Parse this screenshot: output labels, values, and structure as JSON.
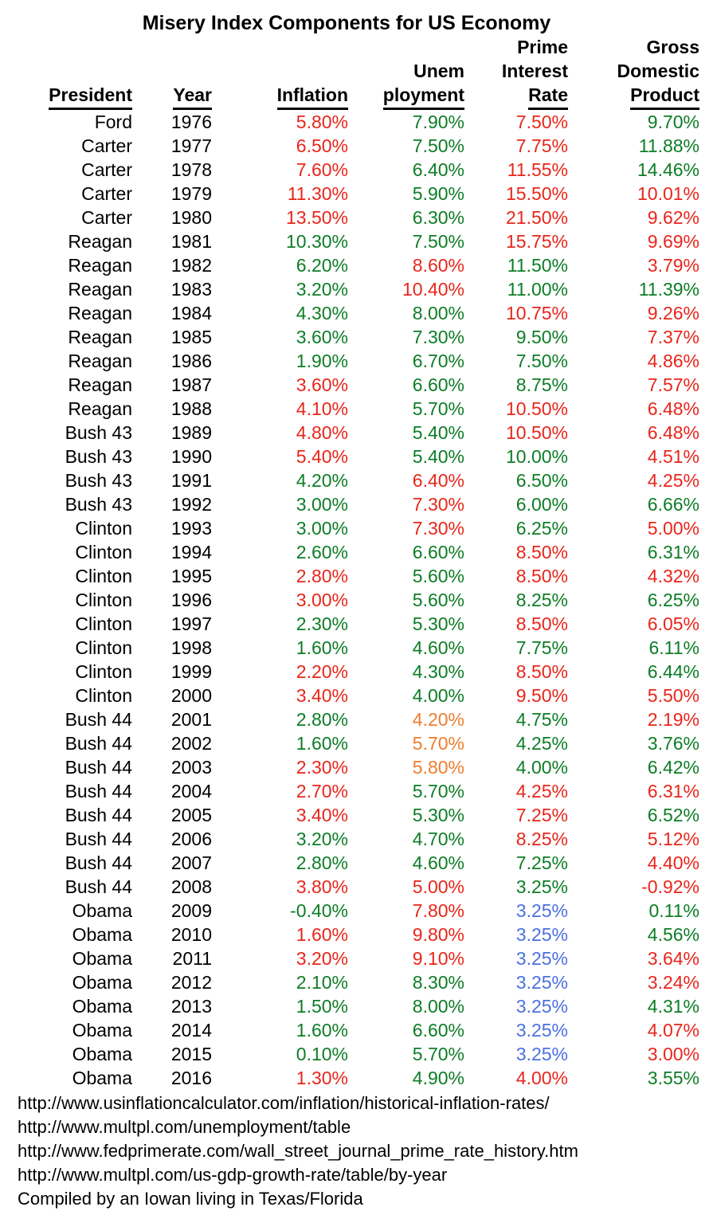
{
  "title": "Misery Index Components for US Economy",
  "colors": {
    "red": "#e8261b",
    "green": "#0d7d26",
    "orange": "#ee7d2e",
    "blue": "#4a70e2",
    "black": "#000000"
  },
  "chart_data": {
    "type": "table",
    "title": "Misery Index Components for US Economy",
    "columns": [
      {
        "key": "president",
        "lines": [
          "",
          "",
          "President"
        ]
      },
      {
        "key": "year",
        "lines": [
          "",
          "",
          "Year"
        ]
      },
      {
        "key": "inflation",
        "lines": [
          "",
          "",
          "Inflation"
        ]
      },
      {
        "key": "unemployment",
        "lines": [
          "",
          "Unem",
          "ployment"
        ]
      },
      {
        "key": "prime-interest-rate",
        "lines": [
          "Prime",
          "Interest",
          "Rate"
        ]
      },
      {
        "key": "gross-domestic-product",
        "lines": [
          "Gross",
          "Domestic",
          "Product"
        ]
      }
    ],
    "value_columns": [
      "inflation",
      "unemployment",
      "prime-interest-rate",
      "gross-domestic-product"
    ],
    "rows": [
      {
        "president": "Ford",
        "year": "1976",
        "values": [
          [
            "5.80%",
            "red"
          ],
          [
            "7.90%",
            "green"
          ],
          [
            "7.50%",
            "red"
          ],
          [
            "9.70%",
            "green"
          ]
        ]
      },
      {
        "president": "Carter",
        "year": "1977",
        "values": [
          [
            "6.50%",
            "red"
          ],
          [
            "7.50%",
            "green"
          ],
          [
            "7.75%",
            "red"
          ],
          [
            "11.88%",
            "green"
          ]
        ]
      },
      {
        "president": "Carter",
        "year": "1978",
        "values": [
          [
            "7.60%",
            "red"
          ],
          [
            "6.40%",
            "green"
          ],
          [
            "11.55%",
            "red"
          ],
          [
            "14.46%",
            "green"
          ]
        ]
      },
      {
        "president": "Carter",
        "year": "1979",
        "values": [
          [
            "11.30%",
            "red"
          ],
          [
            "5.90%",
            "green"
          ],
          [
            "15.50%",
            "red"
          ],
          [
            "10.01%",
            "red"
          ]
        ]
      },
      {
        "president": "Carter",
        "year": "1980",
        "values": [
          [
            "13.50%",
            "red"
          ],
          [
            "6.30%",
            "green"
          ],
          [
            "21.50%",
            "red"
          ],
          [
            "9.62%",
            "red"
          ]
        ]
      },
      {
        "president": "Reagan",
        "year": "1981",
        "values": [
          [
            "10.30%",
            "green"
          ],
          [
            "7.50%",
            "green"
          ],
          [
            "15.75%",
            "red"
          ],
          [
            "9.69%",
            "red"
          ]
        ]
      },
      {
        "president": "Reagan",
        "year": "1982",
        "values": [
          [
            "6.20%",
            "green"
          ],
          [
            "8.60%",
            "red"
          ],
          [
            "11.50%",
            "green"
          ],
          [
            "3.79%",
            "red"
          ]
        ]
      },
      {
        "president": "Reagan",
        "year": "1983",
        "values": [
          [
            "3.20%",
            "green"
          ],
          [
            "10.40%",
            "red"
          ],
          [
            "11.00%",
            "green"
          ],
          [
            "11.39%",
            "green"
          ]
        ]
      },
      {
        "president": "Reagan",
        "year": "1984",
        "values": [
          [
            "4.30%",
            "green"
          ],
          [
            "8.00%",
            "green"
          ],
          [
            "10.75%",
            "red"
          ],
          [
            "9.26%",
            "red"
          ]
        ]
      },
      {
        "president": "Reagan",
        "year": "1985",
        "values": [
          [
            "3.60%",
            "green"
          ],
          [
            "7.30%",
            "green"
          ],
          [
            "9.50%",
            "green"
          ],
          [
            "7.37%",
            "red"
          ]
        ]
      },
      {
        "president": "Reagan",
        "year": "1986",
        "values": [
          [
            "1.90%",
            "green"
          ],
          [
            "6.70%",
            "green"
          ],
          [
            "7.50%",
            "green"
          ],
          [
            "4.86%",
            "red"
          ]
        ]
      },
      {
        "president": "Reagan",
        "year": "1987",
        "values": [
          [
            "3.60%",
            "red"
          ],
          [
            "6.60%",
            "green"
          ],
          [
            "8.75%",
            "green"
          ],
          [
            "7.57%",
            "red"
          ]
        ]
      },
      {
        "president": "Reagan",
        "year": "1988",
        "values": [
          [
            "4.10%",
            "red"
          ],
          [
            "5.70%",
            "green"
          ],
          [
            "10.50%",
            "red"
          ],
          [
            "6.48%",
            "red"
          ]
        ]
      },
      {
        "president": "Bush 43",
        "year": "1989",
        "values": [
          [
            "4.80%",
            "red"
          ],
          [
            "5.40%",
            "green"
          ],
          [
            "10.50%",
            "red"
          ],
          [
            "6.48%",
            "red"
          ]
        ]
      },
      {
        "president": "Bush 43",
        "year": "1990",
        "values": [
          [
            "5.40%",
            "red"
          ],
          [
            "5.40%",
            "green"
          ],
          [
            "10.00%",
            "green"
          ],
          [
            "4.51%",
            "red"
          ]
        ]
      },
      {
        "president": "Bush 43",
        "year": "1991",
        "values": [
          [
            "4.20%",
            "green"
          ],
          [
            "6.40%",
            "red"
          ],
          [
            "6.50%",
            "green"
          ],
          [
            "4.25%",
            "red"
          ]
        ]
      },
      {
        "president": "Bush 43",
        "year": "1992",
        "values": [
          [
            "3.00%",
            "green"
          ],
          [
            "7.30%",
            "red"
          ],
          [
            "6.00%",
            "green"
          ],
          [
            "6.66%",
            "green"
          ]
        ]
      },
      {
        "president": "Clinton",
        "year": "1993",
        "values": [
          [
            "3.00%",
            "green"
          ],
          [
            "7.30%",
            "red"
          ],
          [
            "6.25%",
            "green"
          ],
          [
            "5.00%",
            "red"
          ]
        ]
      },
      {
        "president": "Clinton",
        "year": "1994",
        "values": [
          [
            "2.60%",
            "green"
          ],
          [
            "6.60%",
            "green"
          ],
          [
            "8.50%",
            "red"
          ],
          [
            "6.31%",
            "green"
          ]
        ]
      },
      {
        "president": "Clinton",
        "year": "1995",
        "values": [
          [
            "2.80%",
            "red"
          ],
          [
            "5.60%",
            "green"
          ],
          [
            "8.50%",
            "red"
          ],
          [
            "4.32%",
            "red"
          ]
        ]
      },
      {
        "president": "Clinton",
        "year": "1996",
        "values": [
          [
            "3.00%",
            "red"
          ],
          [
            "5.60%",
            "green"
          ],
          [
            "8.25%",
            "green"
          ],
          [
            "6.25%",
            "green"
          ]
        ]
      },
      {
        "president": "Clinton",
        "year": "1997",
        "values": [
          [
            "2.30%",
            "green"
          ],
          [
            "5.30%",
            "green"
          ],
          [
            "8.50%",
            "red"
          ],
          [
            "6.05%",
            "red"
          ]
        ]
      },
      {
        "president": "Clinton",
        "year": "1998",
        "values": [
          [
            "1.60%",
            "green"
          ],
          [
            "4.60%",
            "green"
          ],
          [
            "7.75%",
            "green"
          ],
          [
            "6.11%",
            "green"
          ]
        ]
      },
      {
        "president": "Clinton",
        "year": "1999",
        "values": [
          [
            "2.20%",
            "red"
          ],
          [
            "4.30%",
            "green"
          ],
          [
            "8.50%",
            "red"
          ],
          [
            "6.44%",
            "green"
          ]
        ]
      },
      {
        "president": "Clinton",
        "year": "2000",
        "values": [
          [
            "3.40%",
            "red"
          ],
          [
            "4.00%",
            "green"
          ],
          [
            "9.50%",
            "red"
          ],
          [
            "5.50%",
            "red"
          ]
        ]
      },
      {
        "president": "Bush 44",
        "year": "2001",
        "values": [
          [
            "2.80%",
            "green"
          ],
          [
            "4.20%",
            "orange"
          ],
          [
            "4.75%",
            "green"
          ],
          [
            "2.19%",
            "red"
          ]
        ]
      },
      {
        "president": "Bush 44",
        "year": "2002",
        "values": [
          [
            "1.60%",
            "green"
          ],
          [
            "5.70%",
            "orange"
          ],
          [
            "4.25%",
            "green"
          ],
          [
            "3.76%",
            "green"
          ]
        ]
      },
      {
        "president": "Bush 44",
        "year": "2003",
        "values": [
          [
            "2.30%",
            "red"
          ],
          [
            "5.80%",
            "orange"
          ],
          [
            "4.00%",
            "green"
          ],
          [
            "6.42%",
            "green"
          ]
        ]
      },
      {
        "president": "Bush 44",
        "year": "2004",
        "values": [
          [
            "2.70%",
            "red"
          ],
          [
            "5.70%",
            "green"
          ],
          [
            "4.25%",
            "red"
          ],
          [
            "6.31%",
            "red"
          ]
        ]
      },
      {
        "president": "Bush 44",
        "year": "2005",
        "values": [
          [
            "3.40%",
            "red"
          ],
          [
            "5.30%",
            "green"
          ],
          [
            "7.25%",
            "red"
          ],
          [
            "6.52%",
            "green"
          ]
        ]
      },
      {
        "president": "Bush 44",
        "year": "2006",
        "values": [
          [
            "3.20%",
            "green"
          ],
          [
            "4.70%",
            "green"
          ],
          [
            "8.25%",
            "red"
          ],
          [
            "5.12%",
            "red"
          ]
        ]
      },
      {
        "president": "Bush 44",
        "year": "2007",
        "values": [
          [
            "2.80%",
            "green"
          ],
          [
            "4.60%",
            "green"
          ],
          [
            "7.25%",
            "green"
          ],
          [
            "4.40%",
            "red"
          ]
        ]
      },
      {
        "president": "Bush 44",
        "year": "2008",
        "values": [
          [
            "3.80%",
            "red"
          ],
          [
            "5.00%",
            "red"
          ],
          [
            "3.25%",
            "green"
          ],
          [
            "-0.92%",
            "red"
          ]
        ]
      },
      {
        "president": "Obama",
        "year": "2009",
        "values": [
          [
            "-0.40%",
            "green"
          ],
          [
            "7.80%",
            "red"
          ],
          [
            "3.25%",
            "blue"
          ],
          [
            "0.11%",
            "green"
          ]
        ]
      },
      {
        "president": "Obama",
        "year": "2010",
        "values": [
          [
            "1.60%",
            "red"
          ],
          [
            "9.80%",
            "red"
          ],
          [
            "3.25%",
            "blue"
          ],
          [
            "4.56%",
            "green"
          ]
        ]
      },
      {
        "president": "Obama",
        "year": "2011",
        "values": [
          [
            "3.20%",
            "red"
          ],
          [
            "9.10%",
            "red"
          ],
          [
            "3.25%",
            "blue"
          ],
          [
            "3.64%",
            "red"
          ]
        ]
      },
      {
        "president": "Obama",
        "year": "2012",
        "values": [
          [
            "2.10%",
            "green"
          ],
          [
            "8.30%",
            "green"
          ],
          [
            "3.25%",
            "blue"
          ],
          [
            "3.24%",
            "red"
          ]
        ]
      },
      {
        "president": "Obama",
        "year": "2013",
        "values": [
          [
            "1.50%",
            "green"
          ],
          [
            "8.00%",
            "green"
          ],
          [
            "3.25%",
            "blue"
          ],
          [
            "4.31%",
            "green"
          ]
        ]
      },
      {
        "president": "Obama",
        "year": "2014",
        "values": [
          [
            "1.60%",
            "green"
          ],
          [
            "6.60%",
            "green"
          ],
          [
            "3.25%",
            "blue"
          ],
          [
            "4.07%",
            "red"
          ]
        ]
      },
      {
        "president": "Obama",
        "year": "2015",
        "values": [
          [
            "0.10%",
            "green"
          ],
          [
            "5.70%",
            "green"
          ],
          [
            "3.25%",
            "blue"
          ],
          [
            "3.00%",
            "red"
          ]
        ]
      },
      {
        "president": "Obama",
        "year": "2016",
        "values": [
          [
            "1.30%",
            "red"
          ],
          [
            "4.90%",
            "green"
          ],
          [
            "4.00%",
            "red"
          ],
          [
            "3.55%",
            "green"
          ]
        ]
      }
    ]
  },
  "footer": {
    "lines": [
      "http://www.usinflationcalculator.com/inflation/historical-inflation-rates/",
      "http://www.multpl.com/unemployment/table",
      "http://www.fedprimerate.com/wall_street_journal_prime_rate_history.htm",
      "http://www.multpl.com/us-gdp-growth-rate/table/by-year",
      "Compiled by an Iowan living in Texas/Florida"
    ]
  }
}
